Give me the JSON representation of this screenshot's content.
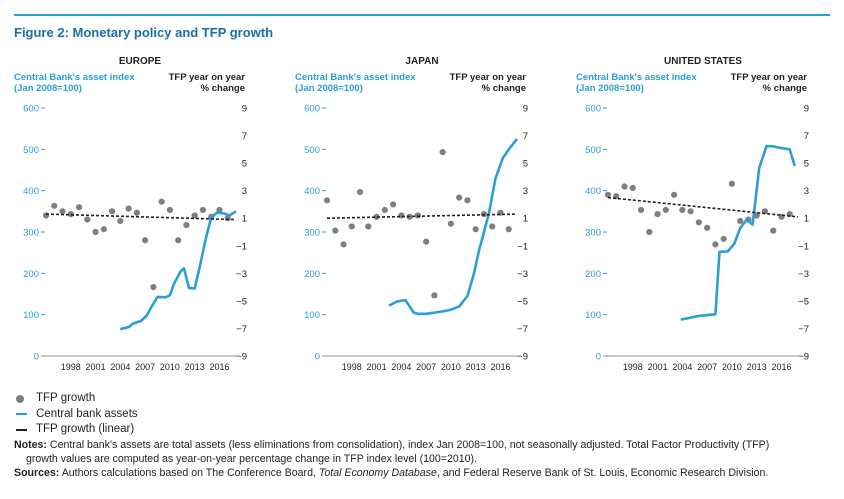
{
  "figure": {
    "title": "Figure 2: Monetary policy and TFP growth"
  },
  "chart_data": [
    {
      "type": "line",
      "title": "EUROPE",
      "ylabel_left": "Central Bank's asset index\n(Jan 2008=100)",
      "ylabel_right": "TFP year on year\n% change",
      "left_axis": {
        "min": 0,
        "max": 600,
        "ticks": [
          0,
          100,
          200,
          300,
          400,
          500,
          600
        ]
      },
      "right_axis": {
        "min": -9,
        "max": 9,
        "ticks": [
          -9,
          -7,
          -5,
          -3,
          -1,
          1,
          3,
          5,
          7,
          9
        ]
      },
      "x_range": [
        1995,
        2018
      ],
      "x_ticks": [
        1998,
        2001,
        2004,
        2007,
        2010,
        2013,
        2016
      ],
      "series": [
        {
          "name": "TFP growth",
          "kind": "scatter",
          "axis": "right",
          "x": [
            1995,
            1996,
            1997,
            1998,
            1999,
            2000,
            2001,
            2002,
            2003,
            2004,
            2005,
            2006,
            2007,
            2008,
            2009,
            2010,
            2011,
            2012,
            2013,
            2014,
            2015,
            2016,
            2017
          ],
          "y": [
            1.2,
            1.9,
            1.5,
            1.3,
            1.8,
            0.9,
            0.0,
            0.2,
            1.5,
            0.8,
            1.7,
            1.4,
            -0.6,
            -4.0,
            2.2,
            1.6,
            -0.6,
            0.5,
            1.2,
            1.6,
            1.1,
            1.6,
            1.0
          ]
        },
        {
          "name": "Central bank assets",
          "kind": "line",
          "axis": "left",
          "x": [
            2004.0,
            2005.0,
            2005.5,
            2006.5,
            2007.2,
            2007.8,
            2008.5,
            2009.5,
            2010.0,
            2010.5,
            2011.3,
            2011.7,
            2012.3,
            2013.0,
            2013.6,
            2014.3,
            2015.0,
            2015.7,
            2016.5,
            2017.2,
            2018.0
          ],
          "y": [
            65,
            70,
            78,
            85,
            98,
            120,
            143,
            142,
            147,
            175,
            205,
            212,
            165,
            163,
            215,
            280,
            335,
            347,
            345,
            340,
            350
          ]
        },
        {
          "name": "TFP growth (linear)",
          "kind": "trend",
          "axis": "right",
          "x": [
            1995,
            2018
          ],
          "y": [
            1.3,
            0.9
          ]
        }
      ]
    },
    {
      "type": "line",
      "title": "JAPAN",
      "ylabel_left": "Central Bank's asset index\n(Jan 2008=100)",
      "ylabel_right": "TFP year on year\n% change",
      "left_axis": {
        "min": 0,
        "max": 600,
        "ticks": [
          0,
          100,
          200,
          300,
          400,
          500,
          600
        ]
      },
      "right_axis": {
        "min": -9,
        "max": 9,
        "ticks": [
          -9,
          -7,
          -5,
          -3,
          -1,
          1,
          3,
          5,
          7,
          9
        ]
      },
      "x_range": [
        1995,
        2018
      ],
      "x_ticks": [
        1998,
        2001,
        2004,
        2007,
        2010,
        2013,
        2016
      ],
      "series": [
        {
          "name": "TFP growth",
          "kind": "scatter",
          "axis": "right",
          "x": [
            1995,
            1996,
            1997,
            1998,
            1999,
            2000,
            2001,
            2002,
            2003,
            2004,
            2005,
            2006,
            2007,
            2008,
            2009,
            2010,
            2011,
            2012,
            2013,
            2014,
            2015,
            2016,
            2017
          ],
          "y": [
            2.3,
            0.1,
            -0.9,
            0.4,
            2.9,
            0.4,
            1.1,
            1.6,
            2.0,
            1.2,
            1.1,
            1.2,
            -0.7,
            -4.6,
            5.8,
            0.6,
            2.5,
            2.3,
            0.2,
            1.3,
            0.4,
            1.4,
            0.2
          ]
        },
        {
          "name": "Central bank assets",
          "kind": "line",
          "axis": "left",
          "x": [
            2002.5,
            2003.5,
            2004.5,
            2005.5,
            2006.0,
            2007.0,
            2008.0,
            2009.0,
            2010.0,
            2011.0,
            2012.0,
            2012.8,
            2013.4,
            2014.0,
            2014.6,
            2015.4,
            2016.3,
            2017.2,
            2018.0
          ],
          "y": [
            122,
            132,
            135,
            105,
            102,
            102,
            105,
            108,
            112,
            120,
            145,
            200,
            255,
            300,
            345,
            430,
            480,
            505,
            525
          ]
        },
        {
          "name": "TFP growth (linear)",
          "kind": "trend",
          "axis": "right",
          "x": [
            1995,
            2018
          ],
          "y": [
            1.0,
            1.3
          ]
        }
      ]
    },
    {
      "type": "line",
      "title": "UNITED STATES",
      "ylabel_left": "Central Bank's asset index\n(Jan 2008=100)",
      "ylabel_right": "TFP year on year\n% change",
      "left_axis": {
        "min": 0,
        "max": 600,
        "ticks": [
          0,
          100,
          200,
          300,
          400,
          500,
          600
        ]
      },
      "right_axis": {
        "min": -9,
        "max": 9,
        "ticks": [
          -9,
          -7,
          -5,
          -3,
          -1,
          1,
          3,
          5,
          7,
          9
        ]
      },
      "x_range": [
        1995,
        2018
      ],
      "x_ticks": [
        1998,
        2001,
        2004,
        2007,
        2010,
        2013,
        2016
      ],
      "series": [
        {
          "name": "TFP growth",
          "kind": "scatter",
          "axis": "right",
          "x": [
            1995,
            1996,
            1997,
            1998,
            1999,
            2000,
            2001,
            2002,
            2003,
            2004,
            2005,
            2006,
            2007,
            2008,
            2009,
            2010,
            2011,
            2012,
            2013,
            2014,
            2015,
            2016,
            2017
          ],
          "y": [
            2.7,
            2.6,
            3.3,
            3.2,
            1.6,
            0.0,
            1.3,
            1.6,
            2.7,
            1.6,
            1.5,
            0.7,
            0.3,
            -0.9,
            -0.5,
            3.5,
            0.8,
            0.9,
            1.2,
            1.5,
            0.1,
            1.1,
            1.3
          ]
        },
        {
          "name": "Central bank assets",
          "kind": "line",
          "axis": "left",
          "x": [
            2003.8,
            2005.0,
            2006.0,
            2007.0,
            2008.0,
            2008.5,
            2009.5,
            2010.3,
            2011.0,
            2011.8,
            2012.5,
            2013.3,
            2014.2,
            2015.0,
            2016.0,
            2017.0,
            2017.6
          ],
          "y": [
            88,
            93,
            97,
            99,
            101,
            252,
            253,
            272,
            310,
            330,
            318,
            455,
            508,
            507,
            503,
            500,
            460
          ]
        },
        {
          "name": "TFP growth (linear)",
          "kind": "trend",
          "axis": "right",
          "x": [
            1995,
            2018
          ],
          "y": [
            2.5,
            1.1
          ]
        }
      ]
    }
  ],
  "legend": {
    "items": [
      {
        "label": "TFP growth",
        "symbol": "dot"
      },
      {
        "label": "Central bank assets",
        "symbol": "line"
      },
      {
        "label": "TFP growth (linear)",
        "symbol": "dash"
      }
    ]
  },
  "notes": {
    "label": "Notes:",
    "text1": " Central bank's assets are total assets (less eliminations from consolidation), index Jan 2008=100, not seasonally adjusted. Total Factor Productivity (TFP)",
    "text2": "growth values are computed as year-on-year percentage change in TFP index level (100=2010).",
    "sources_label": "Sources:",
    "sources_pre": " Authors calculations based on The Conference Board, ",
    "sources_italic": "Total Economy Database",
    "sources_post": ", and Federal Reserve Bank of St. Louis, Economic Research Division."
  },
  "colors": {
    "accent": "#2a9fd6",
    "title": "#1a6fa8",
    "dot": "#7f7f7f",
    "text": "#231f20",
    "axis": "#8c8c8c"
  }
}
